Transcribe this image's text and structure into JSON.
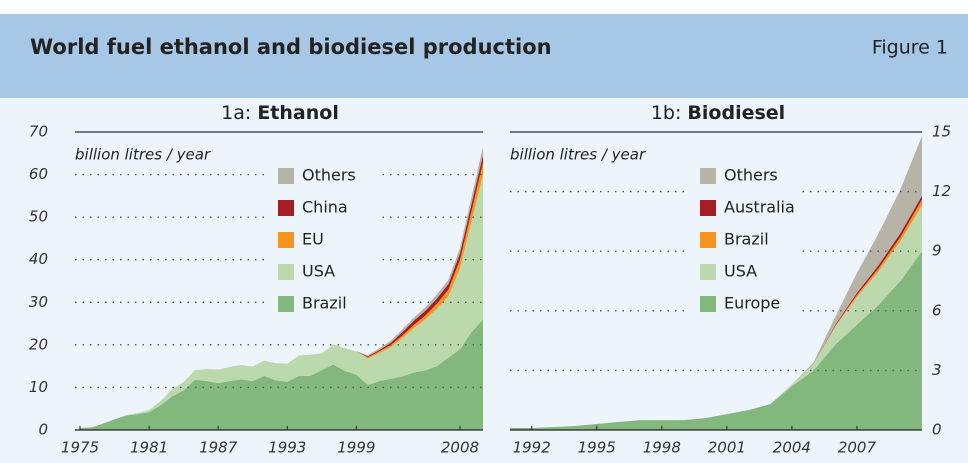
{
  "header": {
    "title": "World fuel ethanol and biodiesel production",
    "figure": "Figure 1"
  },
  "chart_data": [
    {
      "type": "area",
      "stacked": true,
      "panel": "1a:",
      "title": "Ethanol",
      "y_label": "billion litres / year",
      "x": [
        1975,
        1976,
        1977,
        1978,
        1979,
        1980,
        1981,
        1982,
        1983,
        1984,
        1985,
        1986,
        1987,
        1988,
        1989,
        1990,
        1991,
        1992,
        1993,
        1994,
        1995,
        1996,
        1997,
        1998,
        1999,
        2000,
        2001,
        2002,
        2003,
        2004,
        2005,
        2006,
        2007,
        2008,
        2009,
        2010
      ],
      "xlim": [
        1975,
        2010
      ],
      "xticks": [
        1975,
        1981,
        1987,
        1993,
        1999,
        2008
      ],
      "ylim": [
        0,
        70
      ],
      "yticks": [
        0,
        10,
        20,
        30,
        40,
        50,
        60,
        70
      ],
      "grid": true,
      "y_axis_side": "left",
      "series": [
        {
          "name": "Brazil",
          "color": "#82b87e",
          "values": [
            0.5,
            0.6,
            1.5,
            2.5,
            3.4,
            3.7,
            4.2,
            5.8,
            7.9,
            9.3,
            11.8,
            11.5,
            11.0,
            11.5,
            11.9,
            11.5,
            12.7,
            11.7,
            11.3,
            12.7,
            12.7,
            14.1,
            15.4,
            13.9,
            13.0,
            10.6,
            11.5,
            12.0,
            12.6,
            13.5,
            14.0,
            15.0,
            17.0,
            19.0,
            23.0,
            26.0
          ]
        },
        {
          "name": "USA",
          "color": "#bcd9ae",
          "values": [
            0,
            0,
            0,
            0,
            0.1,
            0.3,
            0.5,
            1.0,
            1.6,
            2.0,
            2.3,
            2.8,
            3.2,
            3.3,
            3.4,
            3.4,
            3.6,
            4.0,
            4.3,
            4.8,
            5.0,
            3.9,
            4.7,
            5.3,
            5.5,
            6.2,
            6.6,
            7.5,
            9.0,
            10.5,
            12.0,
            13.5,
            14.5,
            19.0,
            26.0,
            34.0
          ]
        },
        {
          "name": "EU",
          "color": "#f7941d",
          "values": [
            0,
            0,
            0,
            0,
            0,
            0,
            0,
            0,
            0,
            0,
            0,
            0,
            0,
            0,
            0,
            0,
            0,
            0,
            0,
            0,
            0,
            0,
            0,
            0,
            0,
            0.3,
            0.4,
            0.5,
            0.6,
            0.7,
            0.9,
            1.2,
            1.5,
            2.0,
            2.4,
            2.8
          ]
        },
        {
          "name": "China",
          "color": "#a51c22",
          "values": [
            0,
            0,
            0,
            0,
            0,
            0,
            0,
            0,
            0,
            0,
            0,
            0,
            0,
            0,
            0,
            0,
            0,
            0,
            0,
            0,
            0,
            0,
            0,
            0,
            0,
            0.2,
            0.3,
            0.5,
            0.8,
            1.0,
            1.1,
            1.2,
            1.3,
            1.5,
            1.7,
            1.8
          ]
        },
        {
          "name": "Others",
          "color": "#b7b4a7",
          "values": [
            0,
            0,
            0,
            0,
            0,
            0,
            0,
            0,
            0,
            0,
            0,
            0,
            0,
            0,
            0,
            0,
            0,
            0,
            0,
            0,
            0,
            0,
            0,
            0,
            0,
            0.3,
            0.4,
            0.5,
            0.6,
            0.7,
            0.8,
            0.9,
            1.0,
            1.3,
            1.6,
            2.0
          ]
        }
      ]
    },
    {
      "type": "area",
      "stacked": true,
      "panel": "1b:",
      "title": "Biodiesel",
      "y_label": "billion litres / year",
      "x": [
        1991,
        1992,
        1993,
        1994,
        1995,
        1996,
        1997,
        1998,
        1999,
        2000,
        2001,
        2002,
        2003,
        2004,
        2005,
        2006,
        2007,
        2008,
        2009,
        2010
      ],
      "xlim": [
        1991,
        2010
      ],
      "xticks": [
        1992,
        1995,
        1998,
        2001,
        2004,
        2007
      ],
      "ylim": [
        0,
        15
      ],
      "yticks": [
        0,
        3,
        6,
        9,
        12,
        15
      ],
      "grid": true,
      "y_axis_side": "right",
      "series": [
        {
          "name": "Europe",
          "color": "#82b87e",
          "values": [
            0.1,
            0.1,
            0.15,
            0.2,
            0.3,
            0.4,
            0.5,
            0.5,
            0.5,
            0.6,
            0.8,
            1.0,
            1.3,
            2.2,
            3.0,
            4.3,
            5.3,
            6.3,
            7.5,
            9.0
          ]
        },
        {
          "name": "USA",
          "color": "#bcd9ae",
          "values": [
            0,
            0,
            0,
            0,
            0,
            0,
            0,
            0,
            0,
            0,
            0,
            0,
            0,
            0.1,
            0.3,
            0.9,
            1.4,
            1.7,
            2.0,
            2.3
          ]
        },
        {
          "name": "Brazil",
          "color": "#f7941d",
          "values": [
            0,
            0,
            0,
            0,
            0,
            0,
            0,
            0,
            0,
            0,
            0,
            0,
            0,
            0,
            0,
            0.05,
            0.1,
            0.15,
            0.2,
            0.3
          ]
        },
        {
          "name": "Australia",
          "color": "#a51c22",
          "values": [
            0,
            0,
            0,
            0,
            0,
            0,
            0,
            0,
            0,
            0,
            0,
            0,
            0,
            0,
            0,
            0.05,
            0.1,
            0.15,
            0.2,
            0.2
          ]
        },
        {
          "name": "Others",
          "color": "#b7b4a7",
          "values": [
            0,
            0,
            0,
            0,
            0,
            0,
            0,
            0,
            0,
            0,
            0,
            0,
            0,
            0,
            0.1,
            0.4,
            1.0,
            1.6,
            2.2,
            3.0
          ]
        }
      ]
    }
  ]
}
